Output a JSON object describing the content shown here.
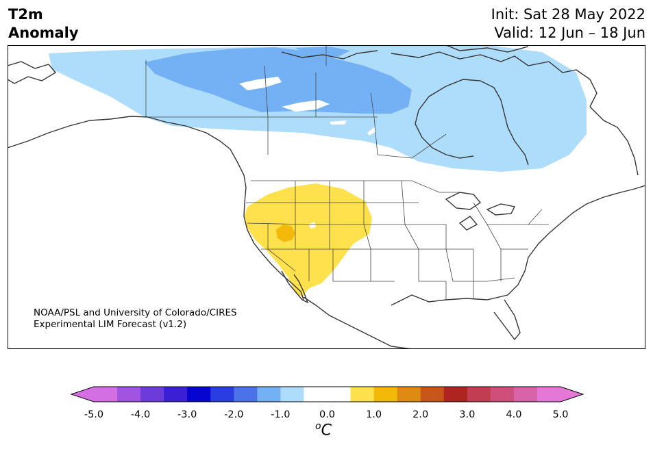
{
  "title": {
    "line1": "T2m",
    "line2": "Anomaly"
  },
  "forecast": {
    "init": "Init: Sat 28 May 2022",
    "valid": "Valid: 12 Jun – 18 Jun"
  },
  "credit": {
    "line1": "NOAA/PSL and University of Colorado/CIRES",
    "line2": "Experimental LIM Forecast (v1.2)"
  },
  "colorbar": {
    "unit_sup": "o",
    "unit_base": "C",
    "ticks": [
      "-5.0",
      "-4.0",
      "-3.0",
      "-2.0",
      "-1.0",
      "0.0",
      "1.0",
      "2.0",
      "3.0",
      "4.0",
      "5.0"
    ],
    "bins": [
      {
        "range": [
          -5.0,
          -4.5
        ],
        "color": "#d36ee3"
      },
      {
        "range": [
          -4.5,
          -4.0
        ],
        "color": "#a054df"
      },
      {
        "range": [
          -4.0,
          -3.5
        ],
        "color": "#6e3bdb"
      },
      {
        "range": [
          -3.5,
          -3.0
        ],
        "color": "#3a1fd4"
      },
      {
        "range": [
          -3.0,
          -2.5
        ],
        "color": "#0505cf"
      },
      {
        "range": [
          -2.5,
          -2.0
        ],
        "color": "#2a3de0"
      },
      {
        "range": [
          -2.0,
          -1.5
        ],
        "color": "#4b72e8"
      },
      {
        "range": [
          -1.5,
          -1.0
        ],
        "color": "#74b0f4"
      },
      {
        "range": [
          -1.0,
          -0.5
        ],
        "color": "#aedcfb"
      },
      {
        "range": [
          -0.5,
          0.0
        ],
        "color": "#ffffff"
      },
      {
        "range": [
          0.0,
          0.5
        ],
        "color": "#ffffff"
      },
      {
        "range": [
          0.5,
          1.0
        ],
        "color": "#ffe14d"
      },
      {
        "range": [
          1.0,
          1.5
        ],
        "color": "#f3b909"
      },
      {
        "range": [
          1.5,
          2.0
        ],
        "color": "#de8a13"
      },
      {
        "range": [
          2.0,
          2.5
        ],
        "color": "#c75618"
      },
      {
        "range": [
          2.5,
          3.0
        ],
        "color": "#ad2421"
      },
      {
        "range": [
          3.0,
          3.5
        ],
        "color": "#c23d4f"
      },
      {
        "range": [
          3.5,
          4.0
        ],
        "color": "#d04f7a"
      },
      {
        "range": [
          4.0,
          4.5
        ],
        "color": "#d963a8"
      },
      {
        "range": [
          4.5,
          5.0
        ],
        "color": "#e577d6"
      }
    ],
    "under_color": "#d36ee3",
    "over_color": "#e577d6"
  },
  "map_regions": [
    {
      "name": "cold-anomaly-light",
      "level": "-1.0 to -0.5",
      "color": "#aedcfb"
    },
    {
      "name": "cold-anomaly-medium",
      "level": "-1.5 to -1.0",
      "color": "#74b0f4"
    },
    {
      "name": "warm-anomaly-light",
      "level": "0.5 to 1.0",
      "color": "#ffe14d"
    },
    {
      "name": "warm-anomaly-medium",
      "level": "1.0 to 1.5",
      "color": "#f3b909"
    }
  ]
}
